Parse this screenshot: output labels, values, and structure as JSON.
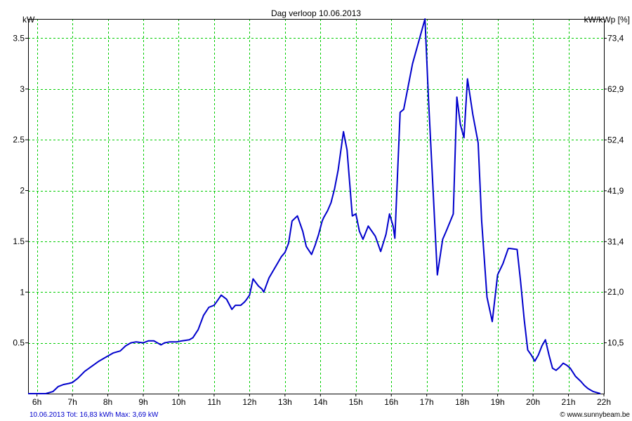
{
  "chart_data": {
    "type": "line",
    "title": "Dag  verloop 10.06.2013",
    "ylabel": "kW",
    "ylabel_right": "kW/kWp [%]",
    "ylim": [
      0,
      3.69
    ],
    "y_ticks": [
      0.5,
      1,
      1.5,
      2,
      2.5,
      3,
      3.5
    ],
    "y_tick_labels": [
      "0.5",
      "1",
      "1.5",
      "2",
      "2.5",
      "3",
      "3.5"
    ],
    "y2_ticks": [
      10.5,
      21.0,
      31.4,
      41.9,
      52.4,
      62.9,
      73.4
    ],
    "y2_tick_labels": [
      "10,5",
      "21,0",
      "31,4",
      "41,9",
      "52,4",
      "62,9",
      "73,4"
    ],
    "xlim": [
      5.75,
      22
    ],
    "x_ticks": [
      6,
      7,
      8,
      9,
      10,
      11,
      12,
      13,
      14,
      15,
      16,
      17,
      18,
      19,
      20,
      21,
      22
    ],
    "x_tick_labels": [
      "6h",
      "7h",
      "8h",
      "9h",
      "10h",
      "11h",
      "12h",
      "13h",
      "14h",
      "15h",
      "16h",
      "17h",
      "18h",
      "19h",
      "20h",
      "21h",
      "22h"
    ],
    "grid": true,
    "line_color": "#0000cc",
    "grid_color": "#00cc00",
    "series": [
      {
        "x": [
          5.75,
          6.25,
          6.45,
          6.6,
          6.75,
          6.9,
          7.0,
          7.15,
          7.35,
          7.55,
          7.75,
          7.95,
          8.15,
          8.35,
          8.5,
          8.65,
          8.8,
          9.0,
          9.15,
          9.3,
          9.5,
          9.6,
          9.75,
          9.95,
          10.1,
          10.3,
          10.4,
          10.55,
          10.7,
          10.85,
          11.0,
          11.1,
          11.2,
          11.35,
          11.5,
          11.6,
          11.75,
          11.85,
          11.9,
          12.0,
          12.1,
          12.25,
          12.35,
          12.4,
          12.55,
          12.75,
          12.9,
          13.0,
          13.1,
          13.2,
          13.35,
          13.5,
          13.6,
          13.75,
          13.85,
          13.95,
          14.05,
          14.1,
          14.2,
          14.3,
          14.4,
          14.5,
          14.65,
          14.75,
          14.9,
          15.0,
          15.1,
          15.2,
          15.35,
          15.45,
          15.55,
          15.7,
          15.85,
          15.95,
          16.05,
          16.1,
          16.25,
          16.35,
          16.6,
          16.95,
          17.05,
          17.3,
          17.45,
          17.55,
          17.75,
          17.85,
          17.95,
          18.05,
          18.15,
          18.3,
          18.45,
          18.55,
          18.7,
          18.85,
          19.0,
          19.15,
          19.3,
          19.35,
          19.55,
          19.65,
          19.75,
          19.85,
          19.95,
          20.05,
          20.15,
          20.25,
          20.35,
          20.45,
          20.55,
          20.65,
          20.75,
          20.85,
          20.95,
          21.05,
          21.2,
          21.35,
          21.45,
          21.55,
          21.7,
          21.9
        ],
        "y": [
          0.0,
          0.0,
          0.02,
          0.07,
          0.09,
          0.1,
          0.11,
          0.15,
          0.22,
          0.27,
          0.32,
          0.36,
          0.4,
          0.42,
          0.47,
          0.5,
          0.51,
          0.5,
          0.52,
          0.52,
          0.48,
          0.5,
          0.51,
          0.51,
          0.52,
          0.53,
          0.55,
          0.63,
          0.77,
          0.85,
          0.87,
          0.92,
          0.97,
          0.93,
          0.83,
          0.87,
          0.87,
          0.9,
          0.92,
          0.97,
          1.13,
          1.06,
          1.03,
          1.0,
          1.14,
          1.26,
          1.35,
          1.39,
          1.48,
          1.7,
          1.75,
          1.6,
          1.45,
          1.37,
          1.46,
          1.57,
          1.7,
          1.74,
          1.8,
          1.88,
          2.02,
          2.2,
          2.58,
          2.4,
          1.75,
          1.77,
          1.6,
          1.52,
          1.65,
          1.6,
          1.55,
          1.4,
          1.57,
          1.77,
          1.65,
          1.53,
          2.77,
          2.8,
          3.25,
          3.69,
          2.9,
          1.17,
          1.52,
          1.6,
          1.77,
          2.92,
          2.65,
          2.52,
          3.1,
          2.75,
          2.47,
          1.7,
          0.95,
          0.71,
          1.17,
          1.28,
          1.43,
          1.43,
          1.42,
          1.1,
          0.73,
          0.43,
          0.38,
          0.32,
          0.38,
          0.47,
          0.53,
          0.38,
          0.25,
          0.23,
          0.26,
          0.3,
          0.28,
          0.25,
          0.17,
          0.12,
          0.08,
          0.05,
          0.02,
          0.0
        ]
      }
    ]
  },
  "footer": {
    "left": "10.06.2013 Tot: 16,83 kWh Max: 3,69 kW",
    "right": "© www.sunnybeam.be"
  }
}
